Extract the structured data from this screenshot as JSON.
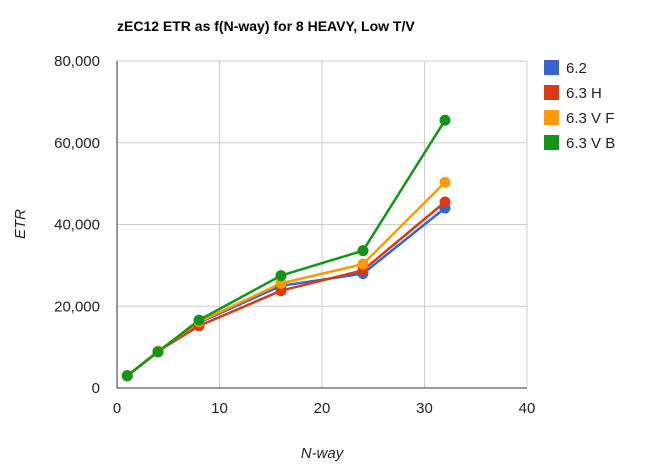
{
  "chart_data": {
    "type": "line",
    "title": "zEC12 ETR as f(N-way) for 8 HEAVY, Low T/V",
    "xlabel": "N-way",
    "ylabel": "ETR",
    "xlim": [
      0,
      40
    ],
    "ylim": [
      0,
      80000
    ],
    "x_ticks": [
      0,
      10,
      20,
      30,
      40
    ],
    "x_tick_labels": [
      "0",
      "10",
      "20",
      "30",
      "40"
    ],
    "y_ticks": [
      0,
      20000,
      40000,
      60000,
      80000
    ],
    "y_tick_labels": [
      "0",
      "20,000",
      "40,000",
      "60,000",
      "80,000"
    ],
    "grid": true,
    "legend_position": "right",
    "series": [
      {
        "name": "6.2",
        "color": "#3366cc",
        "x": [
          1,
          4,
          8,
          16,
          24,
          32
        ],
        "y": [
          3000,
          9000,
          16000,
          25000,
          28000,
          44000
        ]
      },
      {
        "name": "6.3 H",
        "color": "#dc3912",
        "x": [
          1,
          4,
          8,
          16,
          24,
          32
        ],
        "y": [
          3000,
          9000,
          15200,
          23800,
          28800,
          45500
        ]
      },
      {
        "name": "6.3 V F",
        "color": "#ff9900",
        "x": [
          1,
          4,
          8,
          16,
          24,
          32
        ],
        "y": [
          3000,
          9000,
          16200,
          25600,
          30300,
          50300
        ]
      },
      {
        "name": "6.3 V B",
        "color": "#109618",
        "x": [
          1,
          4,
          8,
          16,
          24,
          32
        ],
        "y": [
          3000,
          8800,
          16600,
          27500,
          33600,
          65500
        ]
      }
    ]
  }
}
